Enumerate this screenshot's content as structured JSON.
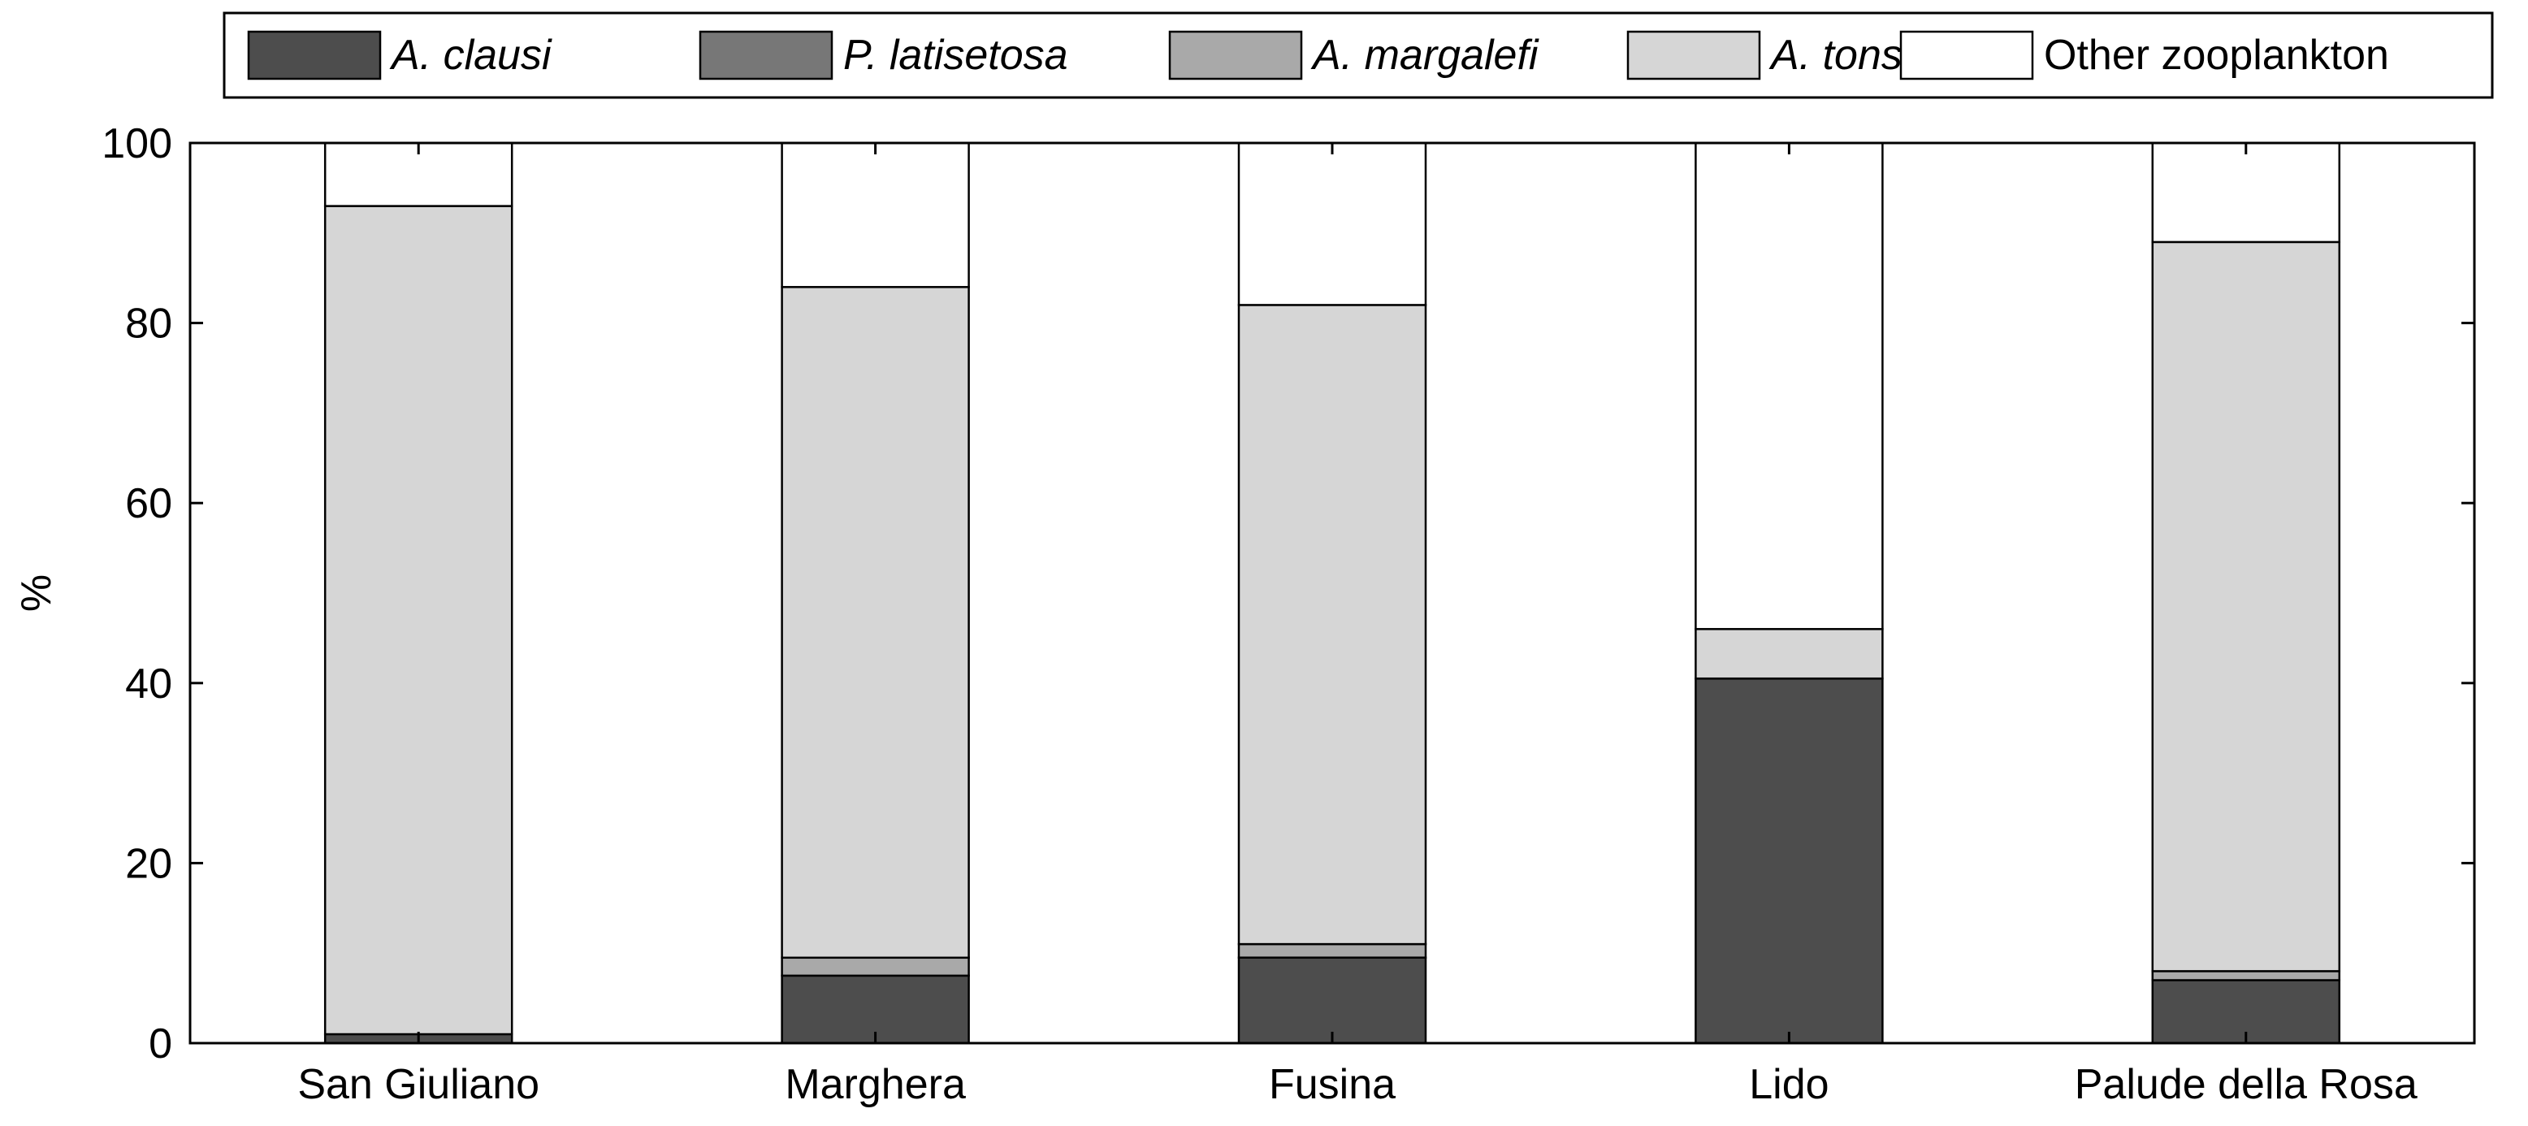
{
  "chart_data": {
    "type": "bar",
    "stacked": true,
    "title": "",
    "xlabel": "",
    "ylabel": "%",
    "ylim": [
      0,
      100
    ],
    "yticks": [
      0,
      20,
      40,
      60,
      80,
      100
    ],
    "grid": false,
    "legend_position": "top",
    "categories": [
      "San Giuliano",
      "Marghera",
      "Fusina",
      "Lido",
      "Palude della Rosa"
    ],
    "series": [
      {
        "name": "A. clausi",
        "italic": true,
        "color": "#4d4d4d",
        "values": [
          1,
          7.5,
          9.5,
          40.5,
          7
        ]
      },
      {
        "name": "P. latisetosa",
        "italic": true,
        "color": "#777777",
        "values": [
          0,
          0,
          0,
          0,
          0
        ]
      },
      {
        "name": "A. margalefi",
        "italic": true,
        "color": "#a9a9a9",
        "values": [
          0,
          2,
          1.5,
          0,
          1
        ]
      },
      {
        "name": "A. tonsa",
        "italic": true,
        "color": "#d6d6d6",
        "values": [
          92,
          74.5,
          71,
          5.5,
          81
        ]
      },
      {
        "name": "Other zooplankton",
        "italic": false,
        "color": "#ffffff",
        "values": [
          7,
          16,
          18,
          54,
          11
        ]
      }
    ]
  }
}
